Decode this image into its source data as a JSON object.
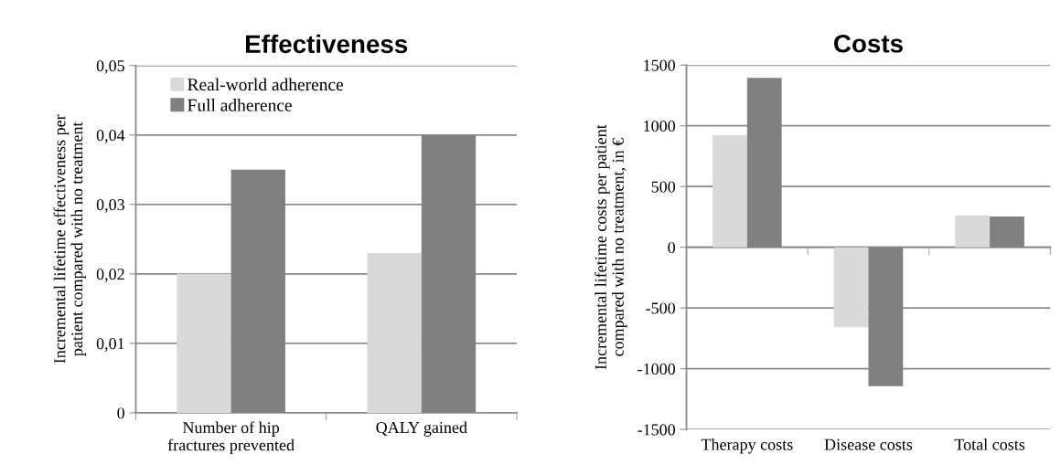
{
  "chart_data": [
    {
      "type": "bar",
      "title": "Effectiveness",
      "ylabel": "Incremental lifetime effectiveness per\npatient compared with no treatment",
      "categories": [
        "Number of hip\nfractures prevented",
        "QALY gained"
      ],
      "series": [
        {
          "name": "Real-world adherence",
          "color": "#d9d9d9",
          "values": [
            0.02,
            0.023
          ]
        },
        {
          "name": "Full adherence",
          "color": "#808080",
          "values": [
            0.035,
            0.04
          ]
        }
      ],
      "ylim": [
        0,
        0.05
      ],
      "yticks": [
        0,
        {
          "value": 0.01,
          "label": "0,01"
        },
        {
          "value": 0.02,
          "label": "0,02"
        },
        {
          "value": 0.03,
          "label": "0,03"
        },
        {
          "value": 0.04,
          "label": "0,04"
        },
        {
          "value": 0.05,
          "label": "0,05"
        }
      ],
      "grid": "y",
      "legend": "top left"
    },
    {
      "type": "bar",
      "title": "Costs",
      "ylabel": "Incremental lifetime costs per patient\ncompared with no treatment, in €",
      "categories": [
        "Therapy costs",
        "Disease costs",
        "Total costs"
      ],
      "series": [
        {
          "color": "#d9d9d9",
          "values": [
            922,
            -659,
            263
          ]
        },
        {
          "color": "#808080",
          "values": [
            1395,
            -1144,
            254
          ]
        }
      ],
      "ylim": [
        -1500,
        1500
      ],
      "yticks": [
        -1500,
        -1000,
        -500,
        0,
        500,
        1000,
        1500
      ],
      "grid": "y",
      "legend": false
    }
  ]
}
